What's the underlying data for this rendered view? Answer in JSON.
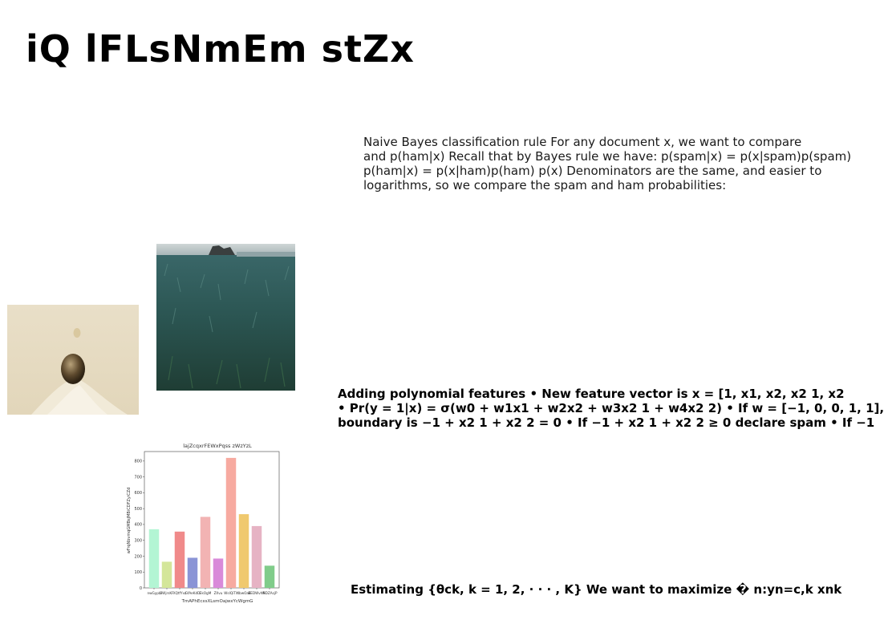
{
  "slide": {
    "title": "iQ lFLsNmEm stZx",
    "paragraph1": [
      "Naive Bayes classification rule For any document x, we want to compare",
      "and p(ham|x) Recall that by Bayes rule we have: p(spam|x) = p(x|spam)p(spam)",
      "p(ham|x) = p(x|ham)p(ham) p(x) Denominators are the same, and easier to",
      "logarithms, so we compare the spam and ham probabilities:"
    ],
    "paragraph2": [
      "Adding polynomial features • New feature vector is x = [1, x1, x2, x2 1, x2",
      "• Pr(y = 1|x) = σ(w0 + w1x1 + w2x2 + w3x2 1 + w4x2 2) • If w = [−1, 0, 0, 1, 1],",
      "boundary is −1 + x2 1 + x2 2 = 0 • If −1 + x2 1 + x2 2 ≥ 0 declare spam • If −1"
    ],
    "paragraph3": "Estimating {θck, k = 1, 2, · · · , K} We want to maximize � n:yn=c,k xnk"
  },
  "chart_data": {
    "type": "bar",
    "title": "lajZcqxrFEWxPqss zWzYzL",
    "xlabel": "TmAPhEcxsXLsmOajwxYcWgmG",
    "ylabel": "wFrqNbvmqGMBsJMBiCDFZyiCZd",
    "categories": [
      "nwGypb",
      "BWjrsKF",
      "XQtfYvz",
      "GfAeKdD",
      "EkOgM",
      "ZXvu",
      "WsIQiTX",
      "dbwOaE",
      "BEDWvhN",
      "IRDZAsjP"
    ],
    "values": [
      370,
      165,
      355,
      190,
      448,
      185,
      820,
      465,
      390,
      140
    ],
    "colors": [
      "#b3f5d4",
      "#d4e69a",
      "#f08a8a",
      "#8a94d6",
      "#f2b3b3",
      "#d98ad9",
      "#f7aaa0",
      "#f0c96e",
      "#e6b3c4",
      "#80cc8a"
    ],
    "ylim": [
      0,
      860
    ],
    "yticks": [
      0,
      100,
      200,
      300,
      400,
      500,
      600,
      700,
      800
    ]
  }
}
